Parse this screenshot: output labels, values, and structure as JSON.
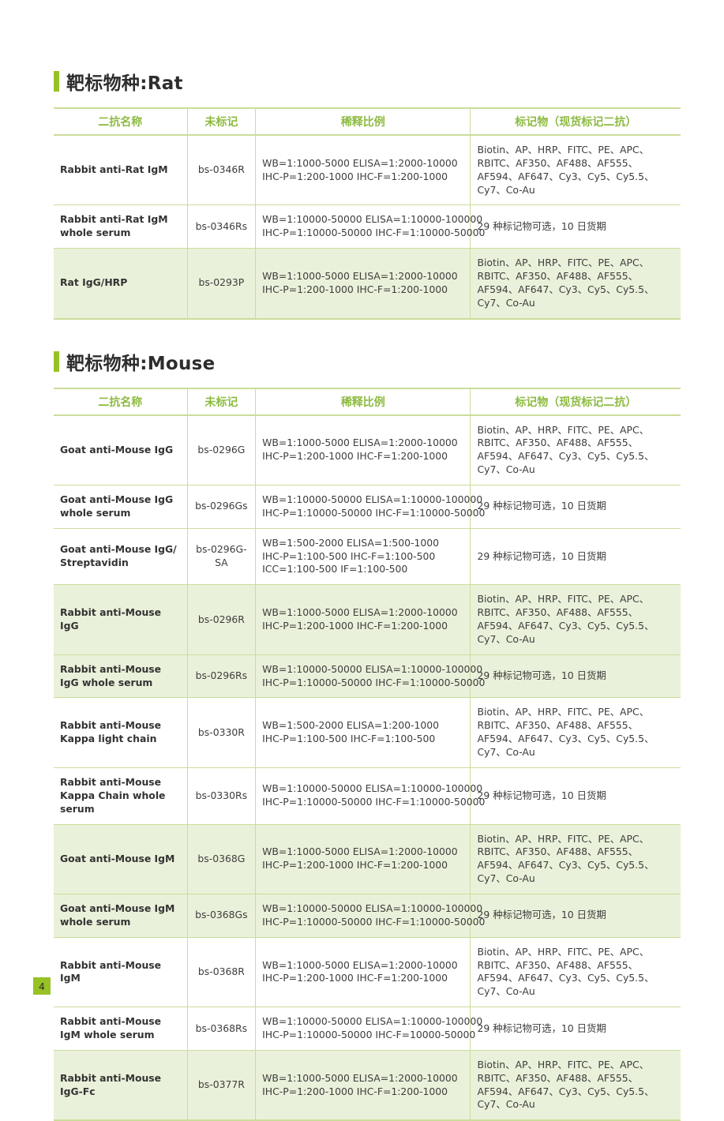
{
  "colors": {
    "accent_green": "#97c225",
    "header_text_green": "#8cba3f",
    "border_green": "#cbdd9a",
    "row_highlight": "#eaf1da",
    "title_text": "#2d2d2d",
    "body_text": "#3d3d3d"
  },
  "page": {
    "number": "4"
  },
  "columns": [
    "二抗名称",
    "未标记",
    "稀释比例",
    "标记物（现货标记二抗）"
  ],
  "sections": [
    {
      "title": "靶标物种:Rat",
      "rows": [
        {
          "name": "Rabbit anti-Rat IgM",
          "catalog": "bs-0346R",
          "dilution": [
            "WB=1:1000-5000  ELISA=1:2000-10000",
            "IHC-P=1:200-1000  IHC-F=1:200-1000"
          ],
          "conjugates": "Biotin、AP、HRP、FITC、PE、APC、RBITC、AF350、AF488、AF555、AF594、AF647、Cy3、Cy5、Cy5.5、Cy7、Co-Au",
          "highlight": false
        },
        {
          "name": "Rabbit anti-Rat IgM whole serum",
          "catalog": "bs-0346Rs",
          "dilution": [
            "WB=1:10000-50000  ELISA=1:10000-100000",
            "IHC-P=1:10000-50000  IHC-F=1:10000-50000"
          ],
          "conjugates": "29 种标记物可选，10 日货期",
          "highlight": false
        },
        {
          "name": "Rat IgG/HRP",
          "catalog": "bs-0293P",
          "dilution": [
            "WB=1:1000-5000  ELISA=1:2000-10000",
            "IHC-P=1:200-1000  IHC-F=1:200-1000"
          ],
          "conjugates": "Biotin、AP、HRP、FITC、PE、APC、RBITC、AF350、AF488、AF555、AF594、AF647、Cy3、Cy5、Cy5.5、Cy7、Co-Au",
          "highlight": true
        }
      ]
    },
    {
      "title": "靶标物种:Mouse",
      "rows": [
        {
          "name": "Goat anti-Mouse IgG",
          "catalog": "bs-0296G",
          "dilution": [
            "WB=1:1000-5000  ELISA=1:2000-10000",
            "IHC-P=1:200-1000  IHC-F=1:200-1000"
          ],
          "conjugates": "Biotin、AP、HRP、FITC、PE、APC、RBITC、AF350、AF488、AF555、AF594、AF647、Cy3、Cy5、Cy5.5、Cy7、Co-Au",
          "highlight": false
        },
        {
          "name": "Goat anti-Mouse IgG whole serum",
          "catalog": "bs-0296Gs",
          "dilution": [
            "WB=1:10000-50000  ELISA=1:10000-100000",
            "IHC-P=1:10000-50000  IHC-F=1:10000-50000"
          ],
          "conjugates": "29 种标记物可选，10 日货期",
          "highlight": false
        },
        {
          "name": "Goat anti-Mouse IgG/ Streptavidin",
          "catalog": "bs-0296G-SA",
          "dilution": [
            "WB=1:500-2000  ELISA=1:500-1000",
            "IHC-P=1:100-500  IHC-F=1:100-500",
            "ICC=1:100-500  IF=1:100-500"
          ],
          "conjugates": "29 种标记物可选，10 日货期",
          "highlight": false
        },
        {
          "name": "Rabbit anti-Mouse IgG",
          "catalog": "bs-0296R",
          "dilution": [
            "WB=1:1000-5000  ELISA=1:2000-10000",
            "IHC-P=1:200-1000  IHC-F=1:200-1000"
          ],
          "conjugates": "Biotin、AP、HRP、FITC、PE、APC、RBITC、AF350、AF488、AF555、AF594、AF647、Cy3、Cy5、Cy5.5、Cy7、Co-Au",
          "highlight": true
        },
        {
          "name": "Rabbit anti-Mouse IgG whole serum",
          "catalog": "bs-0296Rs",
          "dilution": [
            "WB=1:10000-50000  ELISA=1:10000-100000",
            "IHC-P=1:10000-50000  IHC-F=1:10000-50000"
          ],
          "conjugates": "29 种标记物可选，10 日货期",
          "highlight": true
        },
        {
          "name": "Rabbit anti-Mouse Kappa light chain",
          "catalog": "bs-0330R",
          "dilution": [
            "WB=1:500-2000  ELISA=1:200-1000",
            "IHC-P=1:100-500  IHC-F=1:100-500"
          ],
          "conjugates": "Biotin、AP、HRP、FITC、PE、APC、RBITC、AF350、AF488、AF555、AF594、AF647、Cy3、Cy5、Cy5.5、Cy7、Co-Au",
          "highlight": false
        },
        {
          "name": "Rabbit anti-Mouse Kappa Chain whole serum",
          "catalog": "bs-0330Rs",
          "dilution": [
            "WB=1:10000-50000  ELISA=1:10000-100000",
            "IHC-P=1:10000-50000  IHC-F=1:10000-50000"
          ],
          "conjugates": "29 种标记物可选，10 日货期",
          "highlight": false
        },
        {
          "name": "Goat anti-Mouse IgM",
          "catalog": "bs-0368G",
          "dilution": [
            "WB=1:1000-5000  ELISA=1:2000-10000",
            "IHC-P=1:200-1000  IHC-F=1:200-1000"
          ],
          "conjugates": "Biotin、AP、HRP、FITC、PE、APC、RBITC、AF350、AF488、AF555、AF594、AF647、Cy3、Cy5、Cy5.5、Cy7、Co-Au",
          "highlight": true
        },
        {
          "name": "Goat anti-Mouse IgM whole serum",
          "catalog": "bs-0368Gs",
          "dilution": [
            "WB=1:10000-50000  ELISA=1:10000-100000",
            "IHC-P=1:10000-50000  IHC-F=1:10000-50000"
          ],
          "conjugates": "29 种标记物可选，10 日货期",
          "highlight": true
        },
        {
          "name": "Rabbit anti-Mouse IgM",
          "catalog": "bs-0368R",
          "dilution": [
            "WB=1:1000-5000  ELISA=1:2000-10000",
            "IHC-P=1:200-1000  IHC-F=1:200-1000"
          ],
          "conjugates": "Biotin、AP、HRP、FITC、PE、APC、RBITC、AF350、AF488、AF555、AF594、AF647、Cy3、Cy5、Cy5.5、Cy7、Co-Au",
          "highlight": false
        },
        {
          "name": "Rabbit anti-Mouse IgM whole serum",
          "catalog": "bs-0368Rs",
          "dilution": [
            "WB=1:10000-50000  ELISA=1:10000-100000",
            "IHC-P=1:10000-50000  IHC-F=10000-50000"
          ],
          "conjugates": "29 种标记物可选，10 日货期",
          "highlight": false
        },
        {
          "name": "Rabbit anti-Mouse IgG-Fc",
          "catalog": "bs-0377R",
          "dilution": [
            "WB=1:1000-5000  ELISA=1:2000-10000",
            "IHC-P=1:200-1000  IHC-F=1:200-1000"
          ],
          "conjugates": "Biotin、AP、HRP、FITC、PE、APC、RBITC、AF350、AF488、AF555、AF594、AF647、Cy3、Cy5、Cy5.5、Cy7、Co-Au",
          "highlight": true
        }
      ]
    }
  ]
}
